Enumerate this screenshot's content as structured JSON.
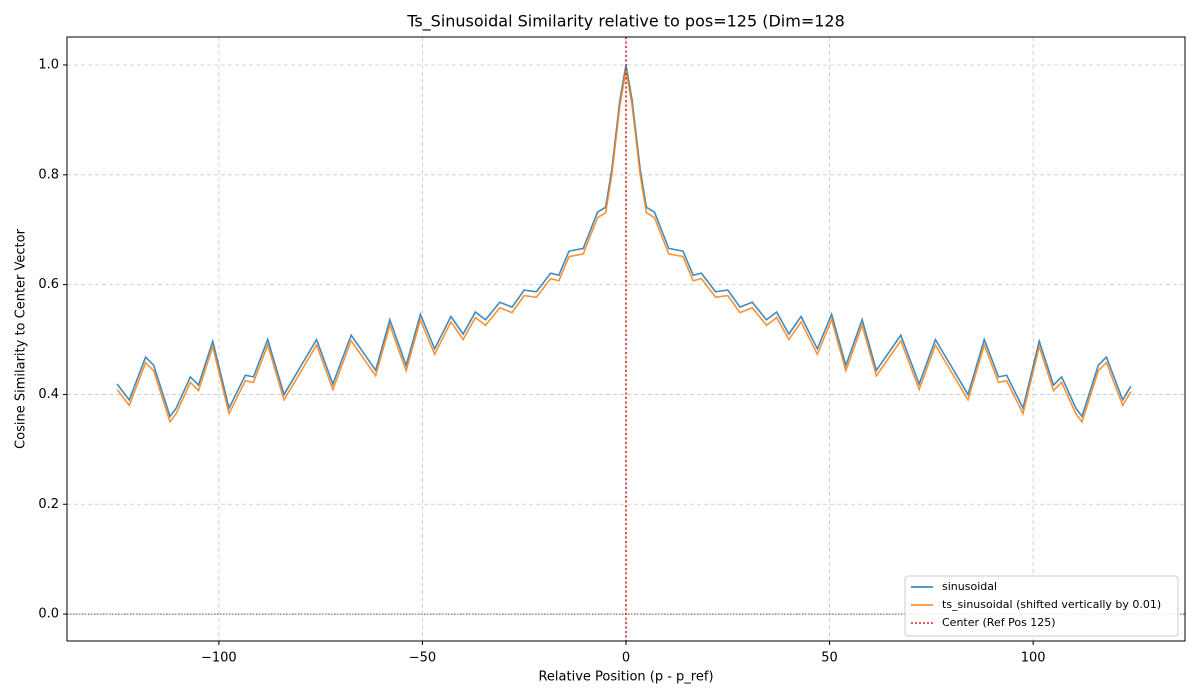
{
  "chart_data": {
    "type": "line",
    "title": "Ts_Sinusoidal Similarity relative to pos=125 (Dim=128",
    "x_label": "Relative Position (p - p_ref)",
    "y_label": "Cosine Similarity to Center Vector",
    "x": [
      -125,
      -122,
      -118,
      -116,
      -112,
      -110.5,
      -107,
      -105,
      -101.5,
      -97.5,
      -93.5,
      -91.5,
      -88,
      -84,
      -80,
      -76,
      -72,
      -67.5,
      -61.5,
      -58,
      -54,
      -50.5,
      -47,
      -43,
      -40,
      -37,
      -34.5,
      -31,
      -28,
      -25,
      -22,
      -18.5,
      -16.5,
      -14,
      -10.5,
      -7,
      -5,
      -3.5,
      -1.5,
      0,
      1.5,
      3.5,
      5,
      7,
      10.5,
      14,
      16.5,
      18.5,
      22,
      25,
      28,
      31,
      34.5,
      37,
      40,
      43,
      47,
      50.5,
      54,
      58,
      61.5,
      67.5,
      72,
      76,
      80,
      84,
      88,
      91.5,
      93.5,
      97.5,
      101.5,
      105,
      107,
      110.5,
      112,
      116,
      118,
      122,
      124
    ],
    "series": [
      {
        "name": "sinusoidal",
        "color": "#1f77b4",
        "values": [
          0.419,
          0.39,
          0.468,
          0.453,
          0.36,
          0.375,
          0.432,
          0.417,
          0.497,
          0.375,
          0.435,
          0.432,
          0.5,
          0.4,
          0.45,
          0.5,
          0.419,
          0.508,
          0.444,
          0.536,
          0.453,
          0.546,
          0.483,
          0.542,
          0.51,
          0.55,
          0.536,
          0.568,
          0.559,
          0.59,
          0.587,
          0.621,
          0.617,
          0.661,
          0.666,
          0.732,
          0.741,
          0.809,
          0.936,
          1.0,
          0.936,
          0.809,
          0.741,
          0.732,
          0.666,
          0.661,
          0.617,
          0.621,
          0.587,
          0.59,
          0.559,
          0.568,
          0.536,
          0.55,
          0.51,
          0.542,
          0.483,
          0.546,
          0.453,
          0.536,
          0.444,
          0.508,
          0.419,
          0.5,
          0.45,
          0.4,
          0.5,
          0.432,
          0.435,
          0.375,
          0.497,
          0.417,
          0.432,
          0.375,
          0.36,
          0.453,
          0.468,
          0.39,
          0.415
        ]
      },
      {
        "name": "ts_sinusoidal (shifted vertically by 0.01)",
        "color": "#ff7f0e",
        "values": [
          0.409,
          0.38,
          0.458,
          0.443,
          0.35,
          0.365,
          0.422,
          0.407,
          0.487,
          0.365,
          0.425,
          0.422,
          0.49,
          0.39,
          0.44,
          0.49,
          0.409,
          0.498,
          0.434,
          0.526,
          0.443,
          0.536,
          0.473,
          0.532,
          0.5,
          0.54,
          0.526,
          0.558,
          0.549,
          0.58,
          0.577,
          0.611,
          0.607,
          0.651,
          0.656,
          0.722,
          0.731,
          0.799,
          0.926,
          0.99,
          0.926,
          0.799,
          0.731,
          0.722,
          0.656,
          0.651,
          0.607,
          0.611,
          0.577,
          0.58,
          0.549,
          0.558,
          0.526,
          0.54,
          0.5,
          0.532,
          0.473,
          0.536,
          0.443,
          0.526,
          0.434,
          0.498,
          0.409,
          0.49,
          0.44,
          0.39,
          0.49,
          0.422,
          0.425,
          0.365,
          0.487,
          0.407,
          0.422,
          0.365,
          0.35,
          0.443,
          0.458,
          0.38,
          0.405
        ]
      }
    ],
    "vline": {
      "name": "Center (Ref Pos 125)",
      "color": "#d62728",
      "x": 0
    },
    "hline": {
      "color": "#000000",
      "y": 0
    },
    "xlim": [
      -137.3,
      137.3
    ],
    "ylim": [
      -0.049,
      1.051
    ],
    "xticks": [
      {
        "value": -100,
        "label": "−100"
      },
      {
        "value": -50,
        "label": "−50"
      },
      0,
      50,
      100
    ],
    "yticks": [
      {
        "value": 0,
        "label": "0.0"
      },
      0.2,
      0.4,
      0.6,
      0.8,
      {
        "value": 1,
        "label": "1.0"
      }
    ],
    "grid": true,
    "legend": "lower right"
  }
}
